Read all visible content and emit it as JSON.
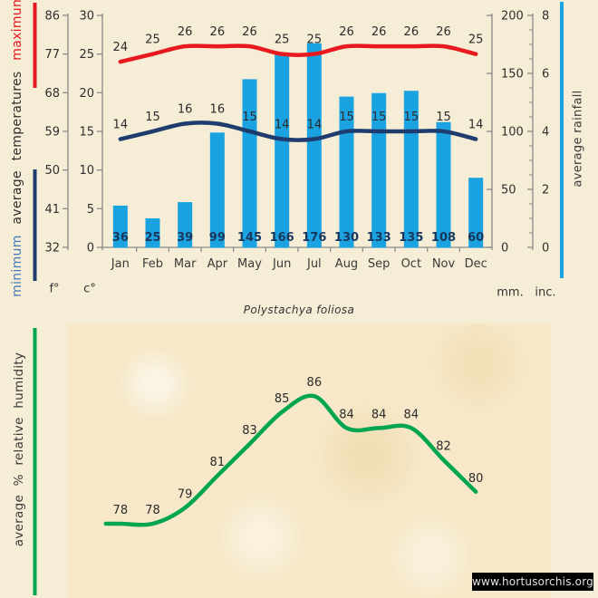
{
  "title": {
    "species": "Polystachya foliosa"
  },
  "watermark": {
    "text": "www.hortusorchis.org"
  },
  "side_labels": {
    "temperature_min": "minimum",
    "temperature_mid": "average temperatures",
    "temperature_max": "maximum",
    "rainfall": "average rainfall",
    "humidity": "average % relative humidity"
  },
  "unit_labels": {
    "fahrenheit": "f°",
    "celsius": "c°",
    "millimeters": "mm.",
    "inches": "inc."
  },
  "colors": {
    "background": "#f5edd5",
    "humidity_panel": "#f6e8c8",
    "rain_bar": "#1ba3e1",
    "max_temp_line": "#e8191f",
    "min_temp_line": "#1f3c6e",
    "humidity_line": "#00a551",
    "axis": "#8a8a8a",
    "label_text": "#2e2e2e",
    "rain_value_text": "#17375d",
    "minimum_caption_blue": "#4a7ebb",
    "watermark_bg": "#000000",
    "watermark_fg": "#e2e2e2"
  },
  "chart_data": [
    {
      "type": "bar",
      "title": "Polystachya foliosa climate diagram",
      "categories": [
        "Jan",
        "Feb",
        "Mar",
        "Apr",
        "May",
        "Jun",
        "Jul",
        "Aug",
        "Sep",
        "Oct",
        "Nov",
        "Dec"
      ],
      "series": [
        {
          "name": "maximum temperature",
          "kind": "line",
          "unit": "°C",
          "color": "#e8191f",
          "values": [
            24,
            25,
            26,
            26,
            26,
            25,
            25,
            26,
            26,
            26,
            26,
            25
          ]
        },
        {
          "name": "minimum temperature",
          "kind": "line",
          "unit": "°C",
          "color": "#1f3c6e",
          "values": [
            14,
            15,
            16,
            16,
            15,
            14,
            14,
            15,
            15,
            15,
            15,
            14
          ]
        },
        {
          "name": "average rainfall",
          "kind": "bar",
          "unit": "mm",
          "color": "#1ba3e1",
          "values": [
            36,
            25,
            39,
            99,
            145,
            166,
            176,
            130,
            133,
            135,
            108,
            60
          ]
        }
      ],
      "axes": {
        "left_outer": {
          "label": "f°",
          "ticks": [
            86,
            77,
            68,
            59,
            50,
            41,
            32
          ]
        },
        "left_inner": {
          "label": "c°",
          "ticks": [
            30,
            25,
            20,
            15,
            10,
            5,
            0
          ],
          "range": [
            0,
            30
          ]
        },
        "right_inner": {
          "label": "mm.",
          "ticks": [
            200,
            150,
            100,
            50,
            0
          ],
          "range": [
            0,
            200
          ]
        },
        "right_outer": {
          "label": "inc.",
          "ticks": [
            8,
            6,
            4,
            2,
            0
          ],
          "range": [
            0,
            8
          ],
          "minor_step": 0.5
        }
      },
      "grid": false,
      "legend_position": "left-vertical"
    },
    {
      "type": "line",
      "name": "average % relative humidity",
      "categories": [
        "Jan",
        "Feb",
        "Mar",
        "Apr",
        "May",
        "Jun",
        "Jul",
        "Aug",
        "Sep",
        "Oct",
        "Nov",
        "Dec"
      ],
      "values": [
        78,
        78,
        79,
        81,
        83,
        85,
        86,
        84,
        84,
        84,
        82,
        80
      ],
      "color": "#00a551",
      "ylim": [
        76,
        88
      ],
      "point_labels": true,
      "grid": false
    }
  ]
}
